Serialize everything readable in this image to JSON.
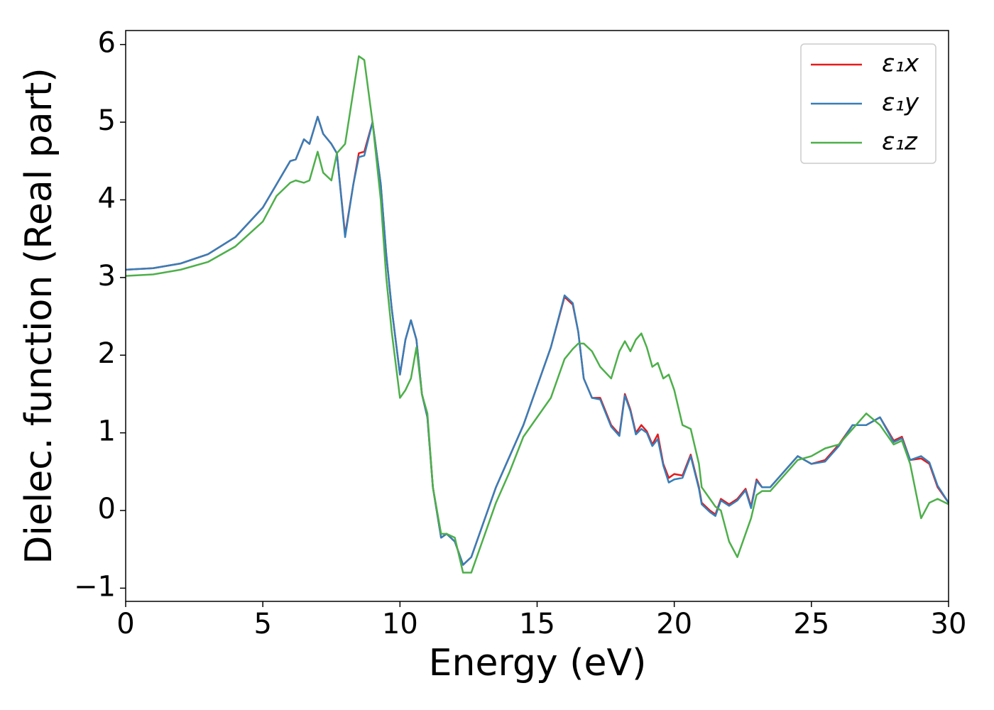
{
  "chart_data": {
    "type": "line",
    "xlabel": "Energy (eV)",
    "ylabel": "Dielec. function (Real part)",
    "xlim": [
      0,
      30
    ],
    "ylim": [
      -1.17,
      6.18
    ],
    "xticks": [
      0,
      5,
      10,
      15,
      20,
      25,
      30
    ],
    "yticks": [
      {
        "value": -1,
        "label": "−1"
      },
      0,
      1,
      2,
      3,
      4,
      5,
      6
    ],
    "legend": "upper right",
    "x": [
      0,
      1,
      2,
      3,
      4,
      5,
      5.5,
      6,
      6.2,
      6.5,
      6.7,
      7,
      7.2,
      7.5,
      7.7,
      8,
      8.3,
      8.5,
      8.7,
      9,
      9.3,
      9.5,
      9.7,
      10,
      10.2,
      10.4,
      10.6,
      10.8,
      11,
      11.2,
      11.5,
      11.7,
      12,
      12.3,
      12.6,
      13,
      13.5,
      14,
      14.5,
      15,
      15.5,
      16,
      16.3,
      16.5,
      16.7,
      17,
      17.3,
      17.7,
      18,
      18.2,
      18.4,
      18.6,
      18.8,
      19,
      19.2,
      19.4,
      19.6,
      19.8,
      20,
      20.3,
      20.6,
      20.9,
      21,
      21.3,
      21.5,
      21.7,
      22,
      22.3,
      22.6,
      22.8,
      23,
      23.2,
      23.5,
      24,
      24.5,
      25,
      25.5,
      26,
      26.5,
      27,
      27.5,
      28,
      28.3,
      28.6,
      29,
      29.3,
      29.6,
      30
    ],
    "series": [
      {
        "name": "ε₁x",
        "color": "#e41a1c",
        "values": [
          3.1,
          3.12,
          3.18,
          3.3,
          3.52,
          3.9,
          4.2,
          4.5,
          4.52,
          4.78,
          4.72,
          5.07,
          4.85,
          4.72,
          4.6,
          3.55,
          4.2,
          4.6,
          4.62,
          5.0,
          4.2,
          3.3,
          2.6,
          1.75,
          2.2,
          2.45,
          2.2,
          1.5,
          1.2,
          0.3,
          -0.35,
          -0.3,
          -0.4,
          -0.7,
          -0.6,
          -0.2,
          0.3,
          0.7,
          1.1,
          1.6,
          2.1,
          2.75,
          2.65,
          2.3,
          1.7,
          1.45,
          1.45,
          1.1,
          0.98,
          1.5,
          1.3,
          1.0,
          1.1,
          1.02,
          0.85,
          0.98,
          0.6,
          0.42,
          0.47,
          0.45,
          0.72,
          0.3,
          0.1,
          0.0,
          -0.05,
          0.15,
          0.08,
          0.15,
          0.28,
          0.05,
          0.4,
          0.3,
          0.3,
          0.5,
          0.7,
          0.6,
          0.65,
          0.85,
          1.1,
          1.1,
          1.2,
          0.9,
          0.95,
          0.65,
          0.67,
          0.6,
          0.3,
          0.1
        ]
      },
      {
        "name": "ε₁y",
        "color": "#377eb8",
        "values": [
          3.1,
          3.12,
          3.18,
          3.3,
          3.52,
          3.9,
          4.2,
          4.5,
          4.52,
          4.78,
          4.72,
          5.07,
          4.85,
          4.72,
          4.6,
          3.52,
          4.2,
          4.55,
          4.57,
          5.0,
          4.2,
          3.3,
          2.6,
          1.75,
          2.2,
          2.45,
          2.2,
          1.5,
          1.2,
          0.3,
          -0.35,
          -0.3,
          -0.4,
          -0.7,
          -0.6,
          -0.2,
          0.3,
          0.7,
          1.1,
          1.6,
          2.1,
          2.77,
          2.67,
          2.3,
          1.7,
          1.45,
          1.43,
          1.08,
          0.96,
          1.48,
          1.28,
          0.98,
          1.05,
          1.0,
          0.83,
          0.92,
          0.58,
          0.36,
          0.4,
          0.42,
          0.7,
          0.28,
          0.08,
          -0.02,
          -0.07,
          0.13,
          0.06,
          0.13,
          0.26,
          0.03,
          0.38,
          0.3,
          0.3,
          0.5,
          0.7,
          0.6,
          0.63,
          0.83,
          1.1,
          1.1,
          1.2,
          0.88,
          0.93,
          0.65,
          0.7,
          0.62,
          0.32,
          0.1
        ]
      },
      {
        "name": "ε₁z",
        "color": "#4daf4a",
        "values": [
          3.02,
          3.04,
          3.1,
          3.2,
          3.4,
          3.72,
          4.05,
          4.22,
          4.25,
          4.22,
          4.25,
          4.62,
          4.35,
          4.25,
          4.6,
          4.72,
          5.4,
          5.85,
          5.8,
          5.0,
          4.0,
          3.0,
          2.3,
          1.45,
          1.55,
          1.7,
          2.1,
          1.5,
          1.25,
          0.3,
          -0.3,
          -0.3,
          -0.35,
          -0.8,
          -0.8,
          -0.4,
          0.1,
          0.5,
          0.95,
          1.2,
          1.45,
          1.95,
          2.08,
          2.15,
          2.15,
          2.05,
          1.85,
          1.7,
          2.05,
          2.18,
          2.05,
          2.2,
          2.28,
          2.1,
          1.85,
          1.9,
          1.7,
          1.75,
          1.55,
          1.1,
          1.05,
          0.6,
          0.3,
          0.15,
          0.05,
          0.0,
          -0.4,
          -0.6,
          -0.3,
          -0.1,
          0.2,
          0.25,
          0.25,
          0.45,
          0.65,
          0.7,
          0.8,
          0.85,
          1.05,
          1.25,
          1.1,
          0.85,
          0.9,
          0.6,
          -0.1,
          0.1,
          0.15,
          0.08
        ]
      }
    ]
  }
}
